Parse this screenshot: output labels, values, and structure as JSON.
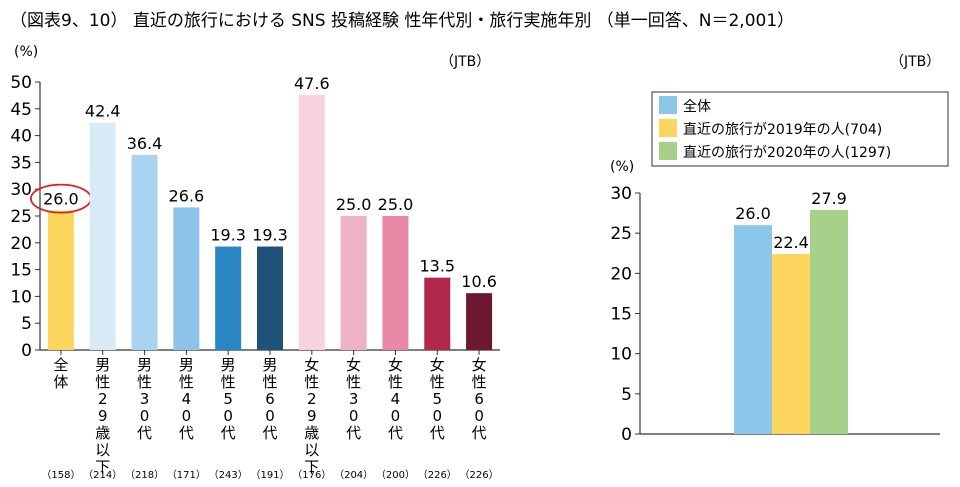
{
  "title": "（図表9、10） 直近の旅行における SNS 投稿経験  性年代別・旅行実施年別 （単一回答、N＝2,001）",
  "colors": {
    "text": "#222222",
    "axis": "#333333",
    "highlight_circle": "#e02020"
  },
  "chart_data": [
    {
      "type": "bar",
      "y_unit": "(%)",
      "source": "（JTB）",
      "ylim": [
        0,
        50
      ],
      "yticks": [
        0,
        5,
        10,
        15,
        20,
        25,
        30,
        35,
        40,
        45,
        50
      ],
      "grid": false,
      "categories": [
        "全体",
        "男性29歳以下",
        "男性30代",
        "男性40代",
        "男性50代",
        "男性60代",
        "女性29歳以下",
        "女性30代",
        "女性40代",
        "女性50代",
        "女性60代"
      ],
      "values": [
        26.0,
        42.4,
        36.4,
        26.6,
        19.3,
        19.3,
        47.6,
        25.0,
        25.0,
        13.5,
        10.6
      ],
      "value_labels": [
        "26.0",
        "42.4",
        "36.4",
        "26.6",
        "19.3",
        "19.3",
        "47.6",
        "25.0",
        "25.0",
        "13.5",
        "10.6"
      ],
      "sample_sizes": [
        "（158）",
        "（214）",
        "（218）",
        "（171）",
        "（243）",
        "（191）",
        "（176）",
        "（204）",
        "（200）",
        "（226）",
        "（226）"
      ],
      "bar_colors": [
        "#FDD65F",
        "#D9EAF7",
        "#A9D3F0",
        "#8CC3E6",
        "#2B86C4",
        "#1F5278",
        "#F8D3DF",
        "#EFB1C4",
        "#E88AA5",
        "#B2284D",
        "#6E1830"
      ],
      "highlighted_index": 0
    },
    {
      "type": "bar",
      "y_unit": "(%)",
      "source": "（JTB）",
      "ylim": [
        0,
        30
      ],
      "yticks": [
        0,
        5,
        10,
        15,
        20,
        25,
        30
      ],
      "grid": false,
      "legend_position": "top",
      "series": [
        {
          "name": "全体",
          "values": [
            26.0
          ],
          "label": "26.0",
          "color": "#8CC7EA"
        },
        {
          "name": "直近の旅行が2019年の人(704)",
          "values": [
            22.4
          ],
          "label": "22.4",
          "color": "#FDD65F"
        },
        {
          "name": "直近の旅行が2020年の人(1297)",
          "values": [
            27.9
          ],
          "label": "27.9",
          "color": "#A7D08A"
        }
      ]
    }
  ]
}
